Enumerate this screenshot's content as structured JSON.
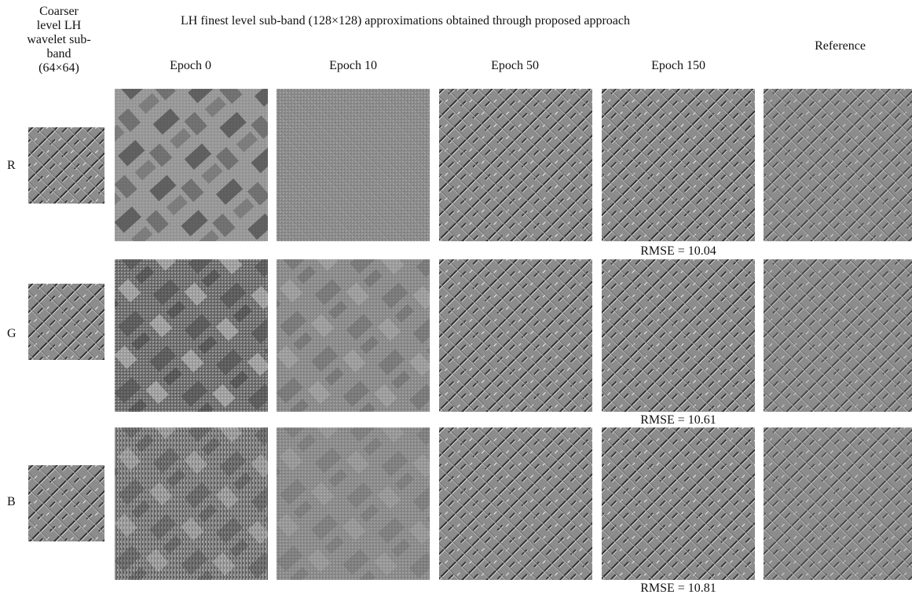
{
  "figure": {
    "title": "LH  finest level sub-band (128×128) approximations obtained through proposed approach",
    "coarse_header": [
      "Coarser",
      "level LH",
      "wavelet sub-",
      "band",
      "(64×64)"
    ],
    "columns": [
      "Epoch 0",
      "Epoch 10",
      "Epoch 50",
      "Epoch 150"
    ],
    "reference_label": "Reference",
    "rows": [
      {
        "channel": "R",
        "rmse": "RMSE = 10.04"
      },
      {
        "channel": "G",
        "rmse": "RMSE = 10.61"
      },
      {
        "channel": "B",
        "rmse": "RMSE = 10.81"
      }
    ]
  }
}
